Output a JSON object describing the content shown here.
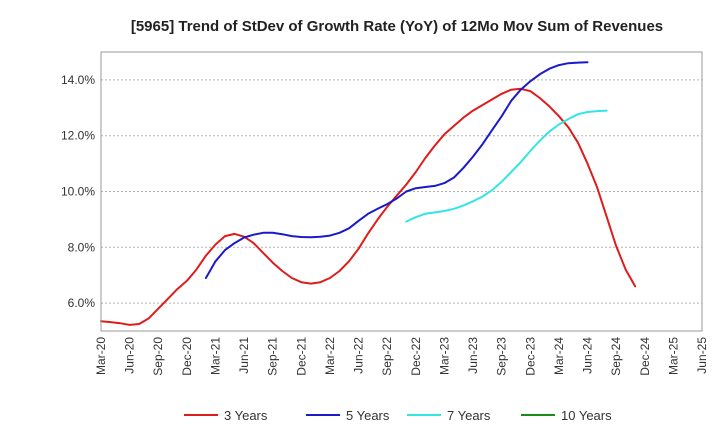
{
  "chart_data": {
    "type": "line",
    "title": "[5965]  Trend of StDev of Growth Rate (YoY) of 12Mo Mov Sum of Revenues",
    "xlabel": "",
    "ylabel": "",
    "ylim": [
      5.0,
      15.0
    ],
    "y_ticks": [
      "6.0%",
      "8.0%",
      "10.0%",
      "12.0%",
      "14.0%"
    ],
    "y_tick_values": [
      6,
      8,
      10,
      12,
      14
    ],
    "x_tick_labels": [
      "Mar-20",
      "Jun-20",
      "Sep-20",
      "Dec-20",
      "Mar-21",
      "Jun-21",
      "Sep-21",
      "Dec-21",
      "Mar-22",
      "Jun-22",
      "Sep-22",
      "Dec-22",
      "Mar-23",
      "Jun-23",
      "Sep-23",
      "Dec-23",
      "Mar-24",
      "Jun-24",
      "Sep-24",
      "Dec-24",
      "Mar-25",
      "Jun-25"
    ],
    "grid": true,
    "legend_position": "bottom",
    "series": [
      {
        "name": "3 Years",
        "color": "#dd1c1c",
        "values": [
          5.35,
          5.32,
          5.28,
          5.22,
          5.25,
          5.45,
          5.8,
          6.15,
          6.5,
          6.8,
          7.2,
          7.7,
          8.1,
          8.4,
          8.48,
          8.38,
          8.15,
          7.8,
          7.45,
          7.15,
          6.9,
          6.75,
          6.7,
          6.75,
          6.9,
          7.15,
          7.5,
          7.95,
          8.5,
          9.0,
          9.45,
          9.85,
          10.25,
          10.7,
          11.2,
          11.65,
          12.05,
          12.35,
          12.65,
          12.9,
          13.1,
          13.3,
          13.5,
          13.65,
          13.68,
          13.6,
          13.35,
          13.05,
          12.7,
          12.3,
          11.75,
          11.0,
          10.15,
          9.1,
          8.05,
          7.2,
          6.6
        ]
      },
      {
        "name": "5 Years",
        "color": "#1a1acc",
        "values": [
          null,
          null,
          null,
          null,
          null,
          null,
          null,
          null,
          null,
          null,
          null,
          6.9,
          7.5,
          7.9,
          8.15,
          8.35,
          8.45,
          8.52,
          8.52,
          8.47,
          8.4,
          8.37,
          8.36,
          8.38,
          8.42,
          8.52,
          8.68,
          8.95,
          9.2,
          9.38,
          9.55,
          9.75,
          10.0,
          10.12,
          10.16,
          10.2,
          10.3,
          10.5,
          10.85,
          11.25,
          11.7,
          12.2,
          12.7,
          13.25,
          13.65,
          13.95,
          14.2,
          14.4,
          14.53,
          14.6,
          14.62,
          14.63
        ]
      },
      {
        "name": "7 Years",
        "color": "#33e5e5",
        "values": [
          null,
          null,
          null,
          null,
          null,
          null,
          null,
          null,
          null,
          null,
          null,
          null,
          null,
          null,
          null,
          null,
          null,
          null,
          null,
          null,
          null,
          null,
          null,
          null,
          null,
          null,
          null,
          null,
          null,
          null,
          null,
          null,
          8.92,
          9.08,
          9.2,
          9.25,
          9.3,
          9.38,
          9.5,
          9.65,
          9.82,
          10.05,
          10.35,
          10.7,
          11.05,
          11.45,
          11.82,
          12.15,
          12.4,
          12.6,
          12.77,
          12.85,
          12.88,
          12.9
        ]
      },
      {
        "name": "10 Years",
        "color": "#1a8c1a",
        "values": []
      }
    ]
  }
}
